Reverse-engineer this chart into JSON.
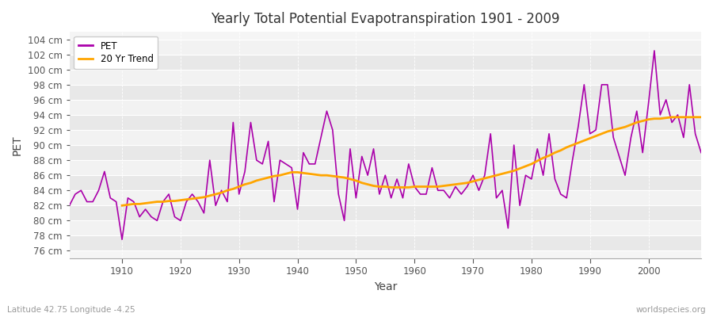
{
  "title": "Yearly Total Potential Evapotranspiration 1901 - 2009",
  "xlabel": "Year",
  "ylabel": "PET",
  "subtitle_left": "Latitude 42.75 Longitude -4.25",
  "subtitle_right": "worldspecies.org",
  "pet_color": "#aa00aa",
  "trend_color": "#ffa500",
  "background_color": "#ffffff",
  "plot_bg_color": "#f0f0f0",
  "band_color_dark": "#e0e0e0",
  "band_color_light": "#f4f4f4",
  "ylim": [
    75,
    105
  ],
  "yticks": [
    76,
    78,
    80,
    82,
    84,
    86,
    88,
    90,
    92,
    94,
    96,
    98,
    100,
    102,
    104
  ],
  "years": [
    1901,
    1902,
    1903,
    1904,
    1905,
    1906,
    1907,
    1908,
    1909,
    1910,
    1911,
    1912,
    1913,
    1914,
    1915,
    1916,
    1917,
    1918,
    1919,
    1920,
    1921,
    1922,
    1923,
    1924,
    1925,
    1926,
    1927,
    1928,
    1929,
    1930,
    1931,
    1932,
    1933,
    1934,
    1935,
    1936,
    1937,
    1938,
    1939,
    1940,
    1941,
    1942,
    1943,
    1944,
    1945,
    1946,
    1947,
    1948,
    1949,
    1950,
    1951,
    1952,
    1953,
    1954,
    1955,
    1956,
    1957,
    1958,
    1959,
    1960,
    1961,
    1962,
    1963,
    1964,
    1965,
    1966,
    1967,
    1968,
    1969,
    1970,
    1971,
    1972,
    1973,
    1974,
    1975,
    1976,
    1977,
    1978,
    1979,
    1980,
    1981,
    1982,
    1983,
    1984,
    1985,
    1986,
    1987,
    1988,
    1989,
    1990,
    1991,
    1992,
    1993,
    1994,
    1995,
    1996,
    1997,
    1998,
    1999,
    2000,
    2001,
    2002,
    2003,
    2004,
    2005,
    2006,
    2007,
    2008,
    2009
  ],
  "pet": [
    82.0,
    83.5,
    84.0,
    82.5,
    82.5,
    84.0,
    86.5,
    83.0,
    82.5,
    77.5,
    83.0,
    82.5,
    80.5,
    81.5,
    80.5,
    80.0,
    82.5,
    83.5,
    80.5,
    80.0,
    82.5,
    83.5,
    82.5,
    81.0,
    88.0,
    82.0,
    84.0,
    82.5,
    93.0,
    83.5,
    86.5,
    93.0,
    88.0,
    87.5,
    90.5,
    82.5,
    88.0,
    87.5,
    87.0,
    81.5,
    89.0,
    87.5,
    87.5,
    91.0,
    94.5,
    92.0,
    83.5,
    80.0,
    89.5,
    83.0,
    88.5,
    86.0,
    89.5,
    83.5,
    86.0,
    83.0,
    85.5,
    83.0,
    87.5,
    84.5,
    83.5,
    83.5,
    87.0,
    84.0,
    84.0,
    83.0,
    84.5,
    83.5,
    84.5,
    86.0,
    84.0,
    86.0,
    91.5,
    83.0,
    84.0,
    79.0,
    90.0,
    82.0,
    86.0,
    85.5,
    89.5,
    86.0,
    91.5,
    85.5,
    83.5,
    83.0,
    88.0,
    92.5,
    98.0,
    91.5,
    92.0,
    98.0,
    98.0,
    91.0,
    88.5,
    86.0,
    91.0,
    94.5,
    89.0,
    95.5,
    102.5,
    94.0,
    96.0,
    93.0,
    94.0,
    91.0,
    98.0,
    91.5,
    89.0
  ],
  "trend_years": [
    1910,
    1911,
    1912,
    1913,
    1914,
    1915,
    1916,
    1917,
    1918,
    1919,
    1920,
    1921,
    1922,
    1923,
    1924,
    1925,
    1926,
    1927,
    1928,
    1929,
    1930,
    1931,
    1932,
    1933,
    1934,
    1935,
    1936,
    1937,
    1938,
    1939,
    1940,
    1941,
    1942,
    1943,
    1944,
    1945,
    1946,
    1947,
    1948,
    1949,
    1950,
    1951,
    1952,
    1953,
    1954,
    1955,
    1956,
    1957,
    1958,
    1959,
    1960,
    1961,
    1962,
    1963,
    1964,
    1965,
    1966,
    1967,
    1968,
    1969,
    1970,
    1971,
    1972,
    1973,
    1974,
    1975,
    1976,
    1977,
    1978,
    1979,
    1980,
    1981,
    1982,
    1983,
    1984,
    1985,
    1986,
    1987,
    1988,
    1989,
    1990,
    1991,
    1992,
    1993,
    1994,
    1995,
    1996,
    1997,
    1998,
    1999,
    2000,
    2001,
    2002,
    2003,
    2004,
    2005,
    2006,
    2007,
    2008,
    2009
  ],
  "trend": [
    82.0,
    82.1,
    82.2,
    82.2,
    82.3,
    82.4,
    82.5,
    82.5,
    82.6,
    82.6,
    82.7,
    82.8,
    82.9,
    83.0,
    83.1,
    83.3,
    83.5,
    83.7,
    84.0,
    84.2,
    84.5,
    84.8,
    85.0,
    85.3,
    85.5,
    85.7,
    85.9,
    86.0,
    86.2,
    86.4,
    86.4,
    86.3,
    86.2,
    86.1,
    86.0,
    86.0,
    85.9,
    85.8,
    85.7,
    85.5,
    85.3,
    85.0,
    84.8,
    84.6,
    84.5,
    84.5,
    84.4,
    84.4,
    84.4,
    84.4,
    84.5,
    84.5,
    84.5,
    84.5,
    84.5,
    84.6,
    84.7,
    84.8,
    84.9,
    85.0,
    85.2,
    85.4,
    85.6,
    85.8,
    86.0,
    86.2,
    86.4,
    86.6,
    86.9,
    87.2,
    87.5,
    87.9,
    88.3,
    88.6,
    89.0,
    89.3,
    89.7,
    90.0,
    90.3,
    90.6,
    90.9,
    91.2,
    91.5,
    91.8,
    92.0,
    92.2,
    92.4,
    92.7,
    93.0,
    93.2,
    93.4,
    93.5,
    93.5,
    93.6,
    93.7,
    93.7,
    93.7,
    93.7,
    93.7,
    93.7
  ]
}
